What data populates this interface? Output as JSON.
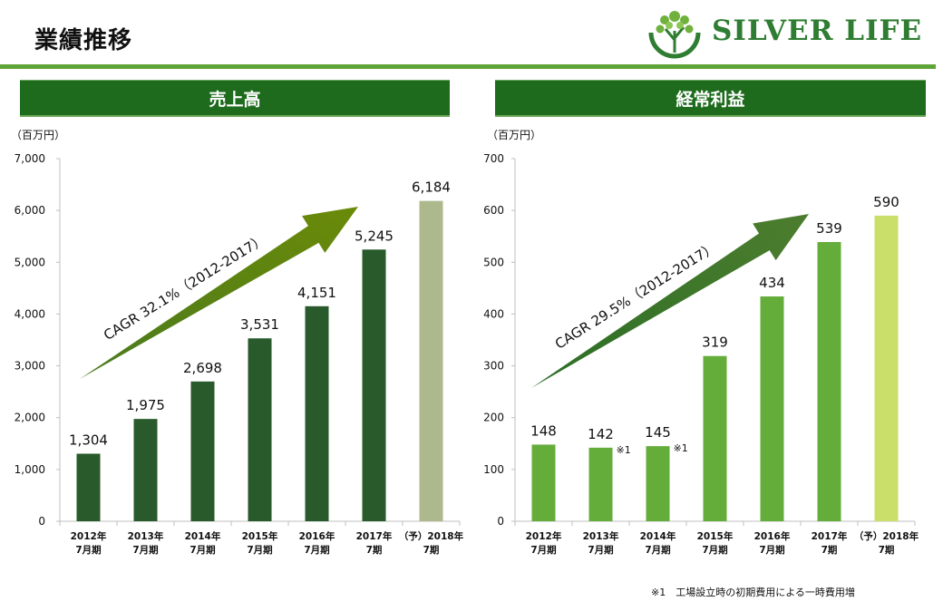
{
  "page": {
    "title": "業績推移"
  },
  "logo": {
    "text": "SILVER LIFE",
    "color": "#2f7d32"
  },
  "colors": {
    "header": "#1e6b1d",
    "rule": "#5fa437"
  },
  "chart_data": [
    {
      "type": "bar",
      "title": "売上高",
      "unit": "（百万円）",
      "categories": [
        [
          "2012年",
          "7月期"
        ],
        [
          "2013年",
          "7月期"
        ],
        [
          "2014年",
          "7月期"
        ],
        [
          "2015年",
          "7月期"
        ],
        [
          "2016年",
          "7月期"
        ],
        [
          "2017年",
          "7期"
        ],
        [
          "（予）2018年",
          "7期"
        ]
      ],
      "values": [
        1304,
        1975,
        2698,
        3531,
        4151,
        5245,
        6184
      ],
      "value_labels": [
        "1,304",
        "1,975",
        "2,698",
        "3,531",
        "4,151",
        "5,245",
        "6,184"
      ],
      "ylim": [
        0,
        7000
      ],
      "yticks": [
        "0",
        "1,000",
        "2,000",
        "3,000",
        "4,000",
        "5,000",
        "6,000",
        "7,000"
      ],
      "bar_colors": [
        "#285a2b",
        "#285a2b",
        "#285a2b",
        "#285a2b",
        "#285a2b",
        "#285a2b",
        "#adb98d"
      ],
      "bar_notes": [
        "",
        "",
        "",
        "",
        "",
        "",
        ""
      ],
      "cagr": "CAGR 32.1%（2012-2017）",
      "arrow_colors": [
        "#4b7a1e",
        "#6a8a08"
      ]
    },
    {
      "type": "bar",
      "title": "経常利益",
      "unit": "（百万円）",
      "categories": [
        [
          "2012年",
          "7月期"
        ],
        [
          "2013年",
          "7月期"
        ],
        [
          "2014年",
          "7月期"
        ],
        [
          "2015年",
          "7月期"
        ],
        [
          "2016年",
          "7月期"
        ],
        [
          "2017年",
          "7期"
        ],
        [
          "（予）2018年",
          "7期"
        ]
      ],
      "values": [
        148,
        142,
        145,
        319,
        434,
        539,
        590
      ],
      "value_labels": [
        "148",
        "142",
        "145",
        "319",
        "434",
        "539",
        "590"
      ],
      "ylim": [
        0,
        700
      ],
      "yticks": [
        "0",
        "100",
        "200",
        "300",
        "400",
        "500",
        "600",
        "700"
      ],
      "bar_colors": [
        "#64ad3a",
        "#64ad3a",
        "#64ad3a",
        "#64ad3a",
        "#64ad3a",
        "#64ad3a",
        "#c9df6a"
      ],
      "bar_notes": [
        "",
        "※1",
        "※1",
        "",
        "",
        "",
        ""
      ],
      "cagr": "CAGR 29.5%（2012-2017）",
      "arrow_colors": [
        "#2b6e26",
        "#4d7d2e"
      ]
    }
  ],
  "footnote": "※1　工場設立時の初期費用による一時費用増"
}
